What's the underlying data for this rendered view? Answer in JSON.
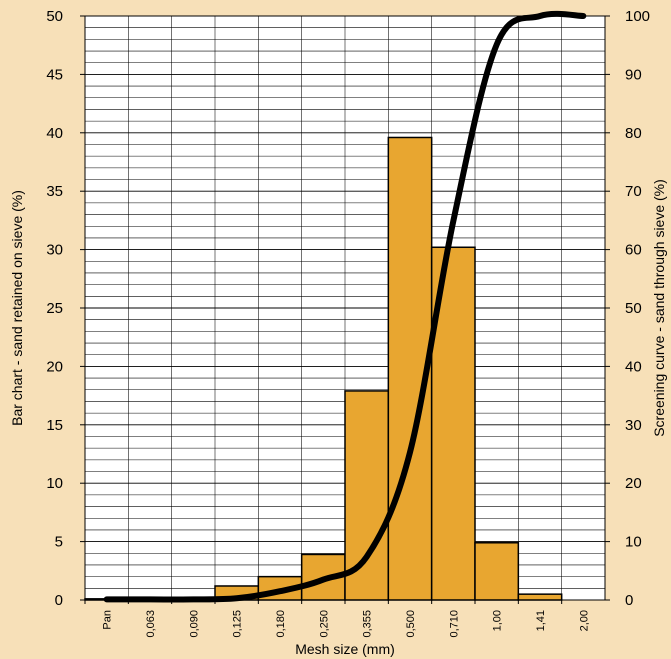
{
  "chart_data": {
    "type": "bar",
    "categories": [
      "Pan",
      "0,063",
      "0,090",
      "0,125",
      "0,180",
      "0,250",
      "0,355",
      "0,500",
      "0,710",
      "1,00",
      "1,41",
      "2,00"
    ],
    "series": [
      {
        "name": "Bar chart - sand retained on sieve (%)",
        "type": "bar",
        "axis": "left",
        "values": [
          0.1,
          0,
          0,
          1.2,
          2.0,
          3.9,
          17.9,
          39.6,
          30.2,
          4.9,
          0.5,
          0
        ]
      },
      {
        "name": "Screening curve - sand through sieve (%)",
        "type": "line",
        "axis": "right",
        "values": [
          0.1,
          0.1,
          0.1,
          0.3,
          1.5,
          3.5,
          7.4,
          25.3,
          64.9,
          95.1,
          100,
          100
        ]
      }
    ],
    "xlabel": "Mesh size (mm)",
    "ylabel_left": "Bar chart - sand retained on sieve (%)",
    "ylabel_right": "Screening curve - sand through sieve (%)",
    "ylim_left": [
      0,
      50
    ],
    "ylim_right": [
      0,
      100
    ],
    "yticks_left": [
      "0",
      "5",
      "10",
      "15",
      "20",
      "25",
      "30",
      "35",
      "40",
      "45",
      "50"
    ],
    "yticks_right": [
      "0",
      "10",
      "20",
      "30",
      "40",
      "50",
      "60",
      "70",
      "80",
      "90",
      "100"
    ],
    "grid": true,
    "colors": {
      "background": "#F7E0B8",
      "plot_area": "#FFFFFF",
      "bar_fill": "#E8A630",
      "bar_edge": "#000000",
      "curve": "#000000",
      "grid": "#000000"
    }
  }
}
